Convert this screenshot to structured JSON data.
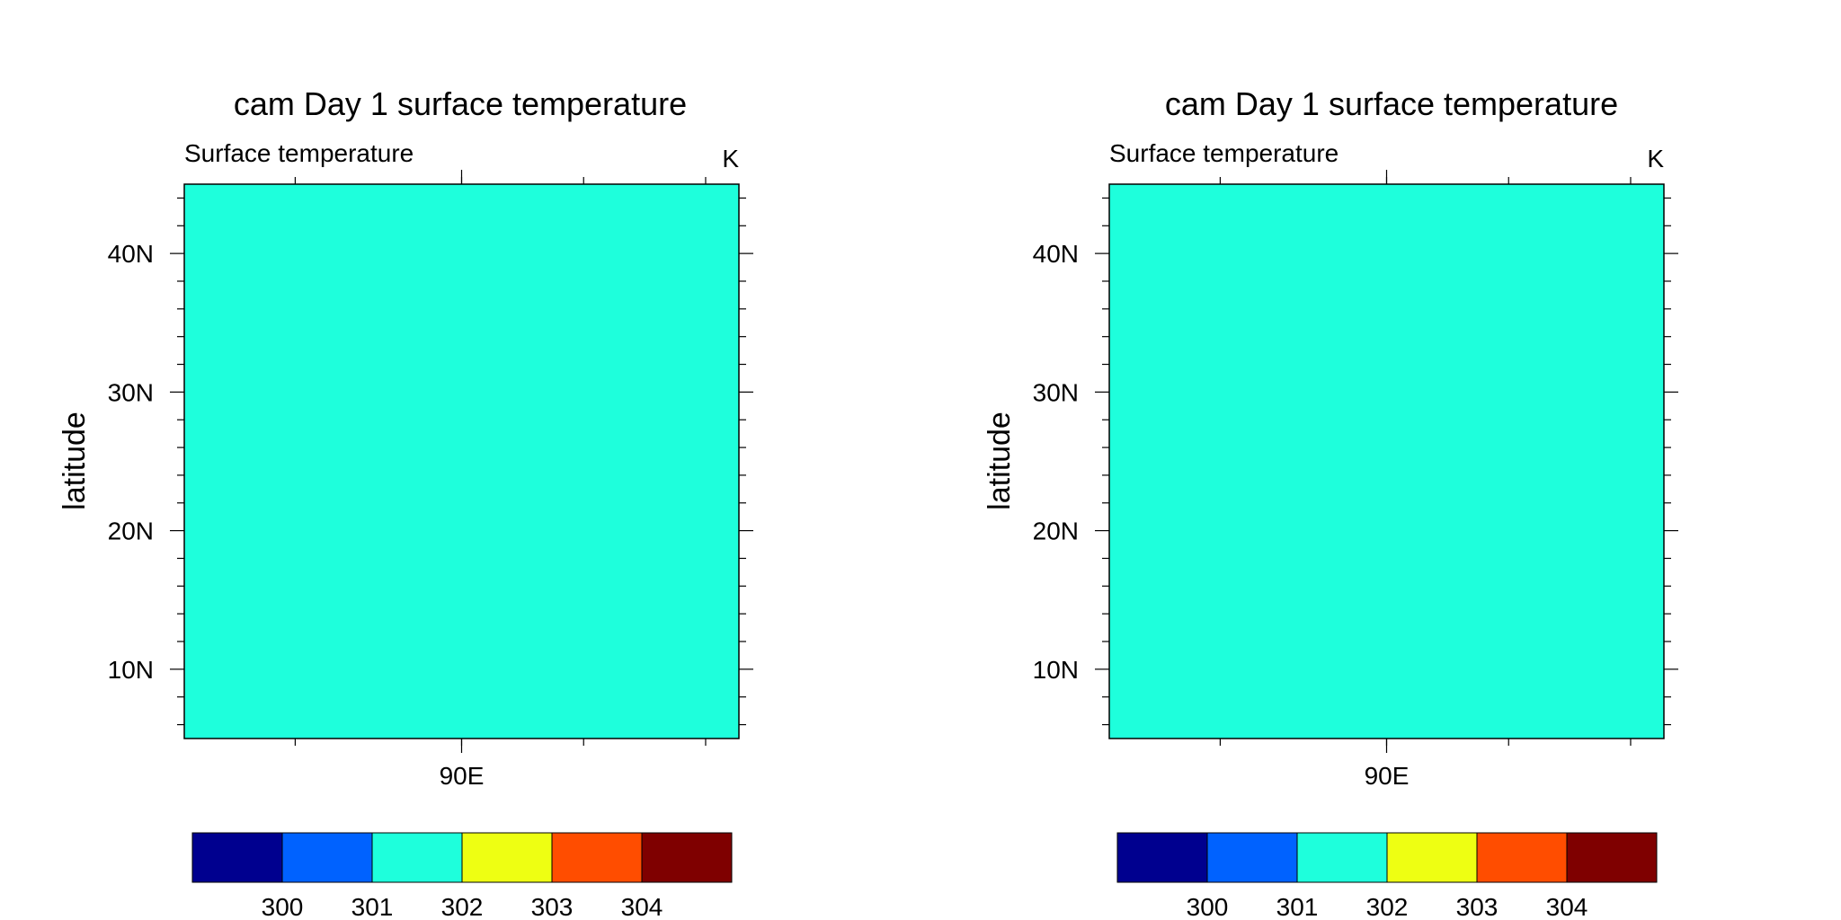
{
  "chart_data": [
    {
      "type": "heatmap",
      "title": "cam Day 1 surface temperature",
      "left_subtitle": "Surface temperature",
      "right_subtitle": "K",
      "xlabel": "",
      "ylabel": "latitude",
      "xlim": [
        65,
        115
      ],
      "ylim": [
        5,
        45
      ],
      "x_major_ticks": [
        {
          "value": 90,
          "label": "90E"
        }
      ],
      "x_minor_ticks": [
        75,
        90,
        101,
        112
      ],
      "y_major_ticks": [
        {
          "value": 10,
          "label": "10N"
        },
        {
          "value": 20,
          "label": "20N"
        },
        {
          "value": 30,
          "label": "30N"
        },
        {
          "value": 40,
          "label": "40N"
        }
      ],
      "field_value_range": [
        301,
        302
      ],
      "field_color": "#1effdc",
      "colorbar": {
        "colors": [
          "#00008f",
          "#0062ff",
          "#1effdc",
          "#eeff12",
          "#ff4d00",
          "#7f0000"
        ],
        "levels": [
          "300",
          "301",
          "302",
          "303",
          "304"
        ]
      }
    },
    {
      "type": "heatmap",
      "title": "cam Day 1 surface temperature",
      "left_subtitle": "Surface temperature",
      "right_subtitle": "K",
      "xlabel": "",
      "ylabel": "latitude",
      "xlim": [
        65,
        115
      ],
      "ylim": [
        5,
        45
      ],
      "x_major_ticks": [
        {
          "value": 90,
          "label": "90E"
        }
      ],
      "x_minor_ticks": [
        75,
        90,
        101,
        112
      ],
      "y_major_ticks": [
        {
          "value": 10,
          "label": "10N"
        },
        {
          "value": 20,
          "label": "20N"
        },
        {
          "value": 30,
          "label": "30N"
        },
        {
          "value": 40,
          "label": "40N"
        }
      ],
      "field_value_range": [
        301,
        302
      ],
      "field_color": "#1effdc",
      "colorbar": {
        "colors": [
          "#00008f",
          "#0062ff",
          "#1effdc",
          "#eeff12",
          "#ff4d00",
          "#7f0000"
        ],
        "levels": [
          "300",
          "301",
          "302",
          "303",
          "304"
        ]
      }
    }
  ]
}
